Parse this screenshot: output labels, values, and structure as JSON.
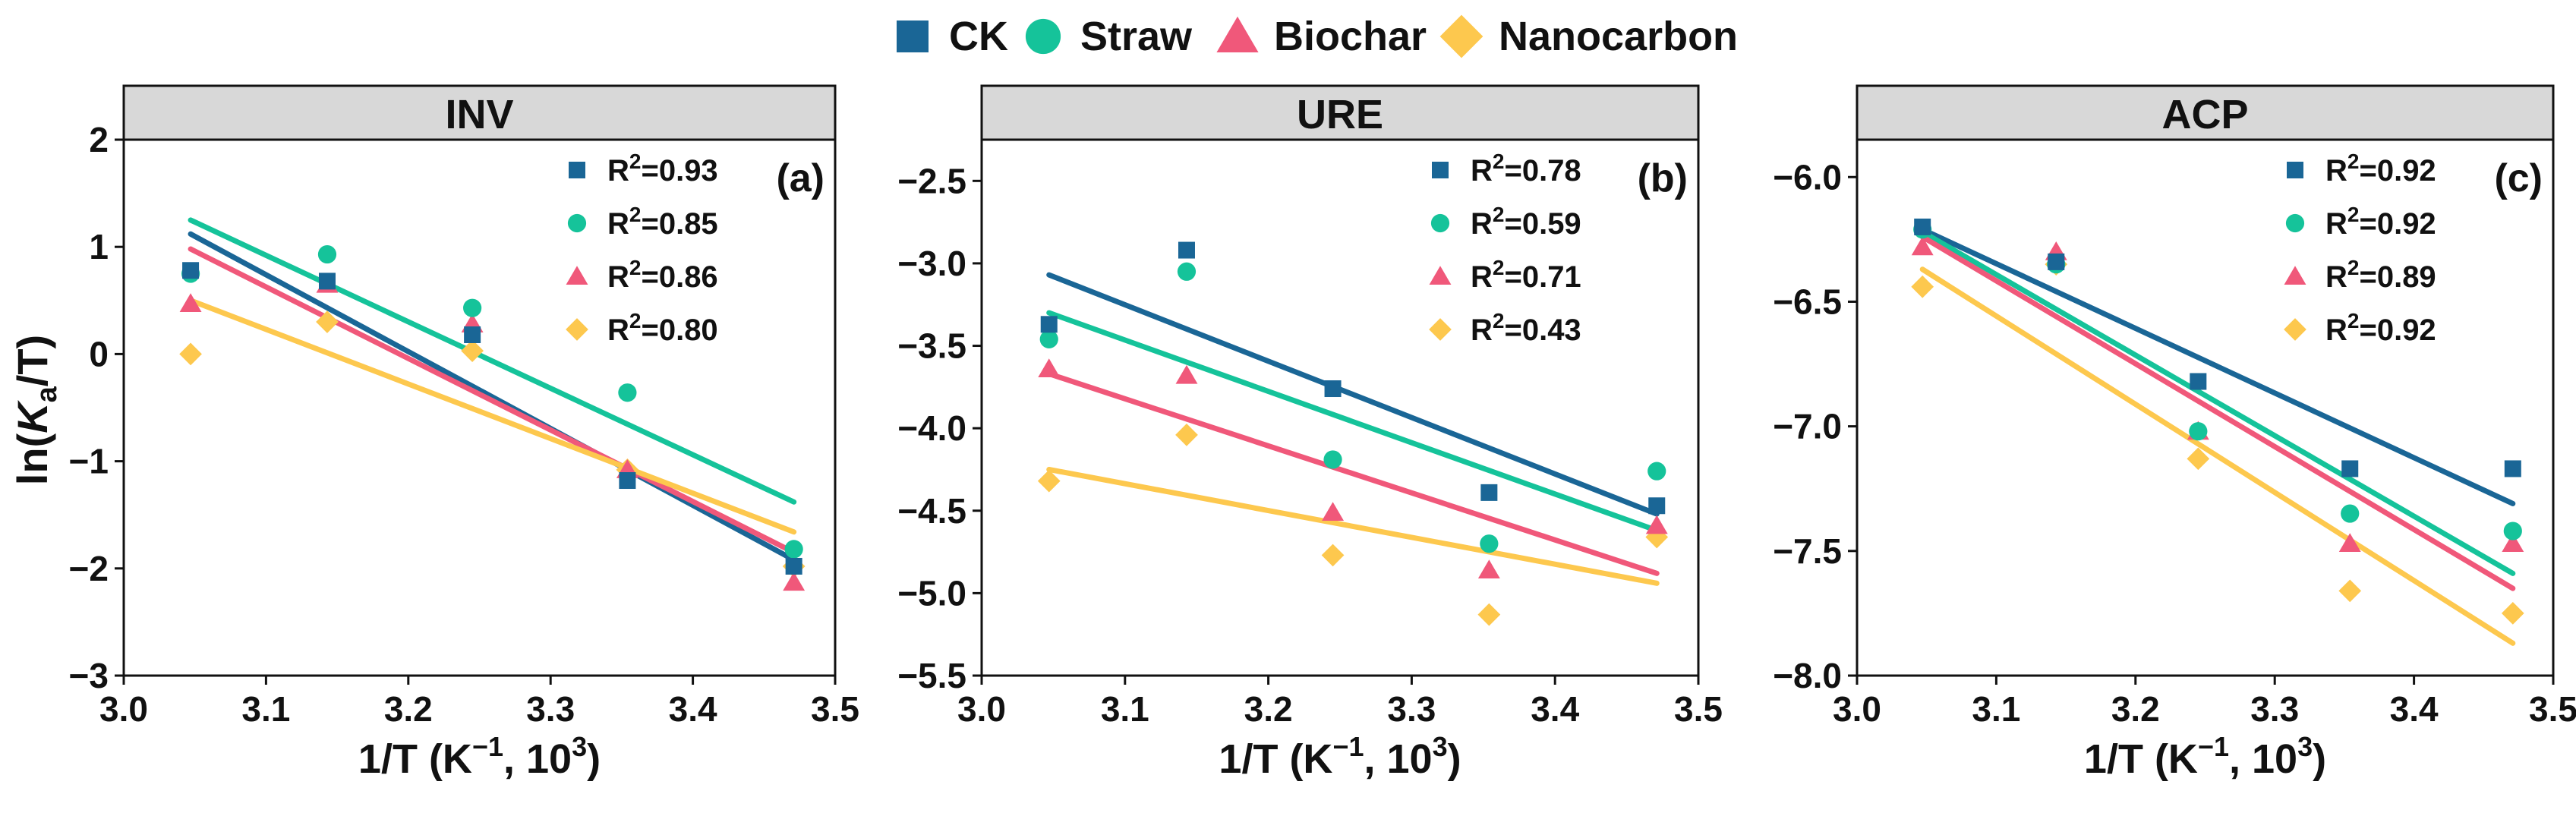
{
  "figure": {
    "y_axis_label_prefix": "ln(",
    "y_axis_label_var": "K",
    "y_axis_label_sub": "a",
    "y_axis_label_suffix": "/T)",
    "x_axis_label_prefix": "1/T (K",
    "x_axis_label_exp": "−1",
    "x_axis_label_mid": ", 10",
    "x_axis_label_exp2": "3",
    "x_axis_label_suffix": ")"
  },
  "legend": [
    {
      "name": "CK",
      "marker": "square",
      "color": "#1a6696"
    },
    {
      "name": "Straw",
      "marker": "circle",
      "color": "#15c39a"
    },
    {
      "name": "Biochar",
      "marker": "triangle",
      "color": "#f0587a"
    },
    {
      "name": "Nanocarbon",
      "marker": "diamond",
      "color": "#fdc84e"
    }
  ],
  "chart_data": [
    {
      "type": "scatter",
      "title": "INV",
      "panel_label": "(a)",
      "xlabel": "1/T (K−1, 103)",
      "ylabel": "ln(Ka/T)",
      "xlim": [
        3.0,
        3.5
      ],
      "ylim": [
        -3,
        2
      ],
      "xticks": [
        "3.0",
        "3.1",
        "3.2",
        "3.3",
        "3.4",
        "3.5"
      ],
      "xtick_values": [
        3.0,
        3.1,
        3.2,
        3.3,
        3.4,
        3.5
      ],
      "yticks": [
        "−3",
        "−2",
        "−1",
        "0",
        "1",
        "2"
      ],
      "ytick_values": [
        -3,
        -2,
        -1,
        0,
        1,
        2
      ],
      "x": [
        3.047,
        3.143,
        3.245,
        3.354,
        3.471
      ],
      "series": [
        {
          "name": "CK",
          "values": [
            0.78,
            0.68,
            0.18,
            -1.18,
            -1.98
          ],
          "fit": [
            1.12,
            -1.92
          ],
          "r2_prefix": "R",
          "r2_exp": "2",
          "r2_value": "=0.93"
        },
        {
          "name": "Straw",
          "values": [
            0.75,
            0.93,
            0.43,
            -0.36,
            -1.82
          ],
          "fit": [
            1.25,
            -1.38
          ],
          "r2_prefix": "R",
          "r2_exp": "2",
          "r2_value": "=0.85"
        },
        {
          "name": "Biochar",
          "values": [
            0.47,
            0.65,
            0.28,
            -1.08,
            -2.13
          ],
          "fit": [
            0.98,
            -1.85
          ],
          "r2_prefix": "R",
          "r2_exp": "2",
          "r2_value": "=0.86"
        },
        {
          "name": "Nanocarbon",
          "values": [
            0.0,
            0.3,
            0.03,
            -1.08,
            -1.98
          ],
          "fit": [
            0.5,
            -1.66
          ],
          "r2_prefix": "R",
          "r2_exp": "2",
          "r2_value": "=0.80"
        }
      ]
    },
    {
      "type": "scatter",
      "title": "URE",
      "panel_label": "(b)",
      "xlabel": "1/T (K−1, 103)",
      "ylabel": "",
      "xlim": [
        3.0,
        3.5
      ],
      "ylim": [
        -5.5,
        -2.25
      ],
      "xticks": [
        "3.0",
        "3.1",
        "3.2",
        "3.3",
        "3.4",
        "3.5"
      ],
      "xtick_values": [
        3.0,
        3.1,
        3.2,
        3.3,
        3.4,
        3.5
      ],
      "yticks": [
        "−5.5",
        "−5.0",
        "−4.5",
        "−4.0",
        "−3.5",
        "−3.0",
        "−2.5"
      ],
      "ytick_values": [
        -5.5,
        -5.0,
        -4.5,
        -4.0,
        -3.5,
        -3.0,
        -2.5
      ],
      "x": [
        3.047,
        3.143,
        3.245,
        3.354,
        3.471
      ],
      "series": [
        {
          "name": "CK",
          "values": [
            -3.37,
            -2.92,
            -3.76,
            -4.39,
            -4.47
          ],
          "fit": [
            -3.07,
            -4.52
          ],
          "r2_prefix": "R",
          "r2_exp": "2",
          "r2_value": "=0.78"
        },
        {
          "name": "Straw",
          "values": [
            -3.46,
            -3.05,
            -4.19,
            -4.7,
            -4.26
          ],
          "fit": [
            -3.3,
            -4.62
          ],
          "r2_prefix": "R",
          "r2_exp": "2",
          "r2_value": "=0.59"
        },
        {
          "name": "Biochar",
          "values": [
            -3.64,
            -3.68,
            -4.51,
            -4.86,
            -4.59
          ],
          "fit": [
            -3.67,
            -4.88
          ],
          "r2_prefix": "R",
          "r2_exp": "2",
          "r2_value": "=0.71"
        },
        {
          "name": "Nanocarbon",
          "values": [
            -4.32,
            -4.04,
            -4.77,
            -5.13,
            -4.66
          ],
          "fit": [
            -4.25,
            -4.94
          ],
          "r2_prefix": "R",
          "r2_exp": "2",
          "r2_value": "=0.43"
        }
      ]
    },
    {
      "type": "scatter",
      "title": "ACP",
      "panel_label": "(c)",
      "xlabel": "1/T (K−1, 103)",
      "ylabel": "",
      "xlim": [
        3.0,
        3.5
      ],
      "ylim": [
        -8.0,
        -5.85
      ],
      "xticks": [
        "3.0",
        "3.1",
        "3.2",
        "3.3",
        "3.4",
        "3.5"
      ],
      "xtick_values": [
        3.0,
        3.1,
        3.2,
        3.3,
        3.4,
        3.5
      ],
      "yticks": [
        "−8.0",
        "−7.5",
        "−7.0",
        "−6.5",
        "−6.0"
      ],
      "ytick_values": [
        -8.0,
        -7.5,
        -7.0,
        -6.5,
        -6.0
      ],
      "x": [
        3.047,
        3.143,
        3.245,
        3.354,
        3.471
      ],
      "series": [
        {
          "name": "CK",
          "values": [
            -6.2,
            -6.34,
            -6.82,
            -7.17,
            -7.17
          ],
          "fit": [
            -6.21,
            -7.31
          ],
          "r2_prefix": "R",
          "r2_exp": "2",
          "r2_value": "=0.92"
        },
        {
          "name": "Straw",
          "values": [
            -6.21,
            -6.35,
            -7.02,
            -7.35,
            -7.42
          ],
          "fit": [
            -6.22,
            -7.59
          ],
          "r2_prefix": "R",
          "r2_exp": "2",
          "r2_value": "=0.92"
        },
        {
          "name": "Biochar",
          "values": [
            -6.28,
            -6.3,
            -7.02,
            -7.47,
            -7.47
          ],
          "fit": [
            -6.24,
            -7.65
          ],
          "r2_prefix": "R",
          "r2_exp": "2",
          "r2_value": "=0.89"
        },
        {
          "name": "Nanocarbon",
          "values": [
            -6.44,
            -6.35,
            -7.13,
            -7.66,
            -7.75
          ],
          "fit": [
            -6.37,
            -7.87
          ],
          "r2_prefix": "R",
          "r2_exp": "2",
          "r2_value": "=0.92"
        }
      ]
    }
  ]
}
